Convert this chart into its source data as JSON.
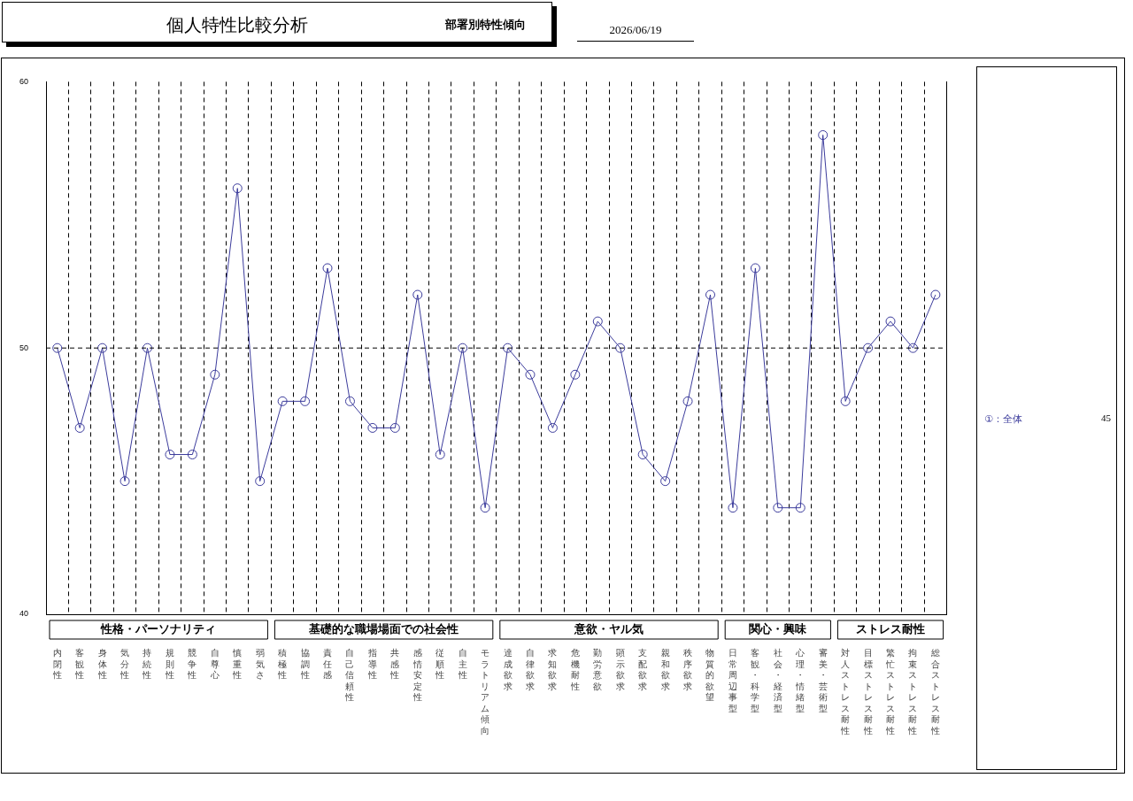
{
  "chart_data": {
    "type": "line",
    "title": "個人特性比較分析",
    "subtitle": "部署別特性傾向",
    "categories": [
      "内閉性",
      "客観性",
      "身体性",
      "気分性",
      "持続性",
      "規則性",
      "競争性",
      "自尊心",
      "慎重性",
      "弱気さ",
      "積極性",
      "協調性",
      "責任感",
      "自己信頼性",
      "指導性",
      "共感性",
      "感情安定性",
      "従順性",
      "自主性",
      "モラトリアム傾向",
      "達成欲求",
      "自律欲求",
      "求知欲求",
      "危機耐性",
      "勤労意欲",
      "顕示欲求",
      "支配欲求",
      "親和欲求",
      "秩序欲求",
      "物質的欲望",
      "日常周辺事型",
      "客観・科学型",
      "社会・経済型",
      "心理・情緒型",
      "審美・芸術型",
      "対人ストレス耐性",
      "目標ストレス耐性",
      "繁忙ストレス耐性",
      "拘束ストレス耐性",
      "総合ストレス耐性"
    ],
    "series": [
      {
        "name": "①：全体",
        "color": "#3c3c9c",
        "values": [
          50,
          47,
          50,
          45,
          50,
          46,
          46,
          49,
          56,
          45,
          48,
          48,
          53,
          48,
          47,
          47,
          52,
          46,
          50,
          44,
          50,
          49,
          47,
          49,
          51,
          50,
          46,
          45,
          48,
          52,
          44,
          53,
          44,
          44,
          58,
          48,
          50,
          51,
          50,
          52
        ]
      }
    ],
    "ylim": [
      40,
      60
    ],
    "yticks": [
      40,
      50,
      60
    ],
    "ref_lines": [
      {
        "axis": "y",
        "value": 50,
        "line_style": "dashed",
        "color": "#000000"
      }
    ],
    "grid": "x",
    "legend": "right",
    "marker": "circle",
    "line_style": "solid",
    "annotations": [
      "2026/06/19",
      "45",
      "性格・パーソナリティ",
      "基礎的な職場場面での社会性",
      "意欲・ヤル気",
      "関心・興味",
      "ストレス耐性"
    ]
  }
}
